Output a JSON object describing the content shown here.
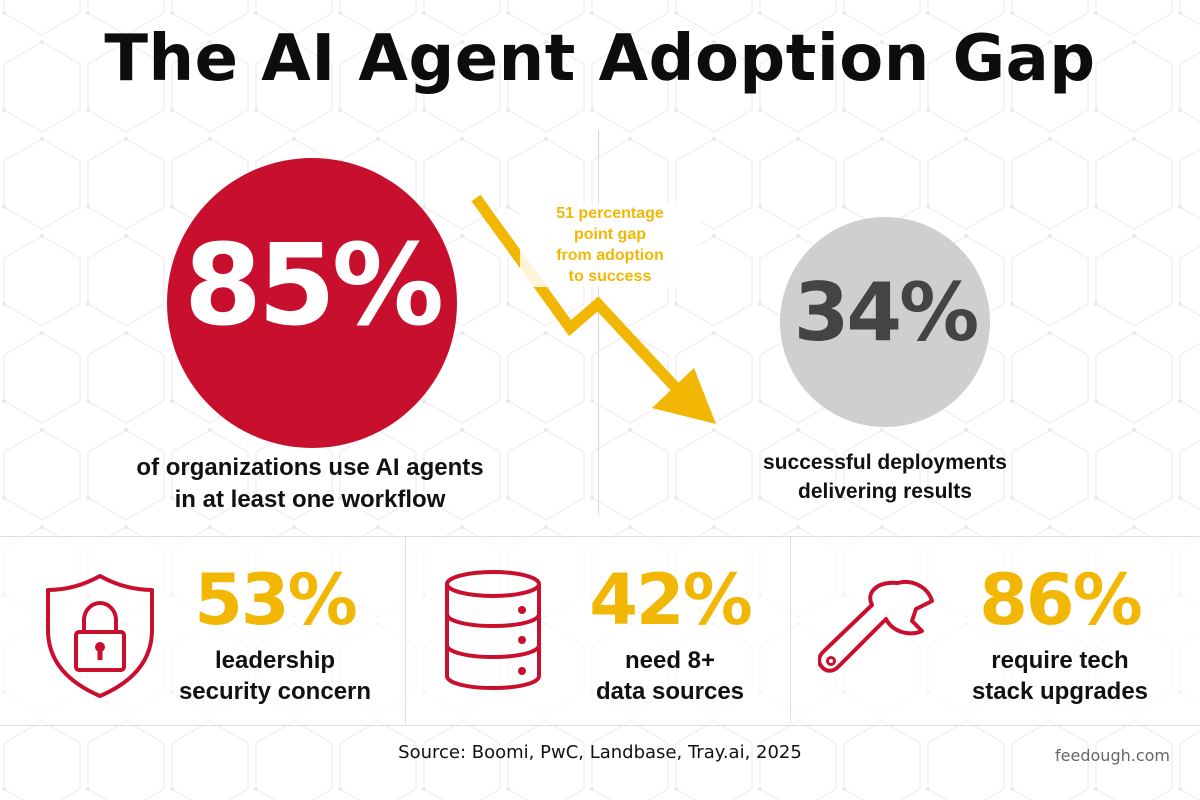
{
  "title": "The AI Agent Adoption Gap",
  "colors": {
    "red": "#c8102e",
    "yellow": "#f2b705",
    "gray_circle": "#cfcfcf",
    "gray_text": "#444444"
  },
  "adoption": {
    "value": "85%",
    "description_line1": "of organizations use AI agents",
    "description_line2": "in at least one workflow"
  },
  "gap": {
    "line1": "51 percentage",
    "line2": "point gap",
    "line3": "from adoption",
    "line4": "to success",
    "icon": "trend-down-arrow-icon"
  },
  "success": {
    "value": "34%",
    "description_line1": "successful deployments",
    "description_line2": "delivering results"
  },
  "stats": [
    {
      "icon": "shield-lock-icon",
      "value": "53%",
      "line1": "leadership",
      "line2": "security concern"
    },
    {
      "icon": "database-icon",
      "value": "42%",
      "line1": "need 8+",
      "line2": "data sources"
    },
    {
      "icon": "wrench-icon",
      "value": "86%",
      "line1": "require tech",
      "line2": "stack upgrades"
    }
  ],
  "source": "Source: Boomi, PwC, Landbase, Tray.ai, 2025",
  "brand": "feedough.com"
}
